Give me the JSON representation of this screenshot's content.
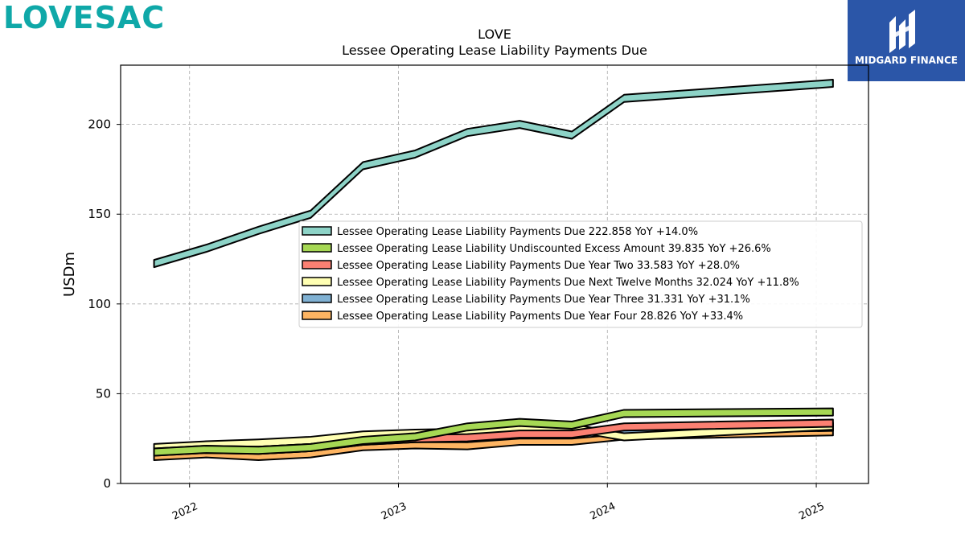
{
  "brand": {
    "name": "LOVESAC",
    "color": "#0fa8a8"
  },
  "badge": {
    "text": "MIDGARD FINANCE",
    "bg": "#2b56a8"
  },
  "chart_data": {
    "type": "area",
    "title": "LOVE",
    "subtitle": "Lessee Operating Lease Liability Payments Due",
    "ylabel": "USDm",
    "xlabel": "",
    "ylim": [
      0,
      233
    ],
    "yticks": [
      0,
      50,
      100,
      150,
      200
    ],
    "xlim": [
      2021.67,
      2025.25
    ],
    "xticks": [
      {
        "value": 2022,
        "label": "2022"
      },
      {
        "value": 2023,
        "label": "2023"
      },
      {
        "value": 2024,
        "label": "2024"
      },
      {
        "value": 2025,
        "label": "2025"
      }
    ],
    "grid": true,
    "legend_position": "center-right",
    "x": [
      2021.83,
      2022.08,
      2022.33,
      2022.58,
      2022.83,
      2023.08,
      2023.33,
      2023.58,
      2023.83,
      2024.08,
      2025.08
    ],
    "series": [
      {
        "name": "Lessee Operating Lease Liability Payments Due",
        "legend": "Lessee Operating Lease Liability Payments Due  222.858 YoY +14.0%",
        "color": "#8dd3c7",
        "values": [
          122.5,
          131,
          141,
          150,
          177,
          183.5,
          195.5,
          200,
          194,
          214.5,
          222.9
        ]
      },
      {
        "name": "Lessee Operating Lease Liability Undiscounted Excess Amount",
        "legend": "Lessee Operating Lease Liability Undiscounted Excess Amount  39.835 YoY +26.6%",
        "color": "#a6d854",
        "values": [
          17.5,
          19,
          18.5,
          20,
          24,
          26,
          31.5,
          34,
          32.5,
          39,
          39.8
        ]
      },
      {
        "name": "Lessee Operating Lease Liability Payments Due Year Two",
        "legend": "Lessee Operating Lease Liability Payments Due Year Two  33.583 YoY +28.0%",
        "color": "#fb8072",
        "values": [
          17.5,
          19,
          18.5,
          20,
          23.5,
          25,
          25.5,
          27.5,
          27.5,
          31.5,
          33.6
        ]
      },
      {
        "name": "Lessee Operating Lease Liability Payments Due Next Twelve Months",
        "legend": "Lessee Operating Lease Liability Payments Due Next Twelve Months  32.024 YoY +11.8%",
        "color": "#ffffb3",
        "values": [
          20,
          21.5,
          22.5,
          24,
          27,
          28,
          28.5,
          30.5,
          31,
          26,
          32
        ]
      },
      {
        "name": "Lessee Operating Lease Liability Payments Due Year Three",
        "legend": "Lessee Operating Lease Liability Payments Due Year Three  31.331 YoY +31.1%",
        "color": "#80b1d3",
        "values": [
          18,
          19.5,
          18.5,
          20,
          23.5,
          25,
          25,
          27,
          27,
          29.5,
          31.3
        ]
      },
      {
        "name": "Lessee Operating Lease Liability Payments Due Year Four",
        "legend": "Lessee Operating Lease Liability Payments Due Year Four  28.826 YoY +33.4%",
        "color": "#fdb462",
        "values": [
          15,
          16.5,
          15,
          16.5,
          20.5,
          21.5,
          21,
          23.5,
          23.5,
          26.5,
          28.8
        ]
      }
    ]
  }
}
